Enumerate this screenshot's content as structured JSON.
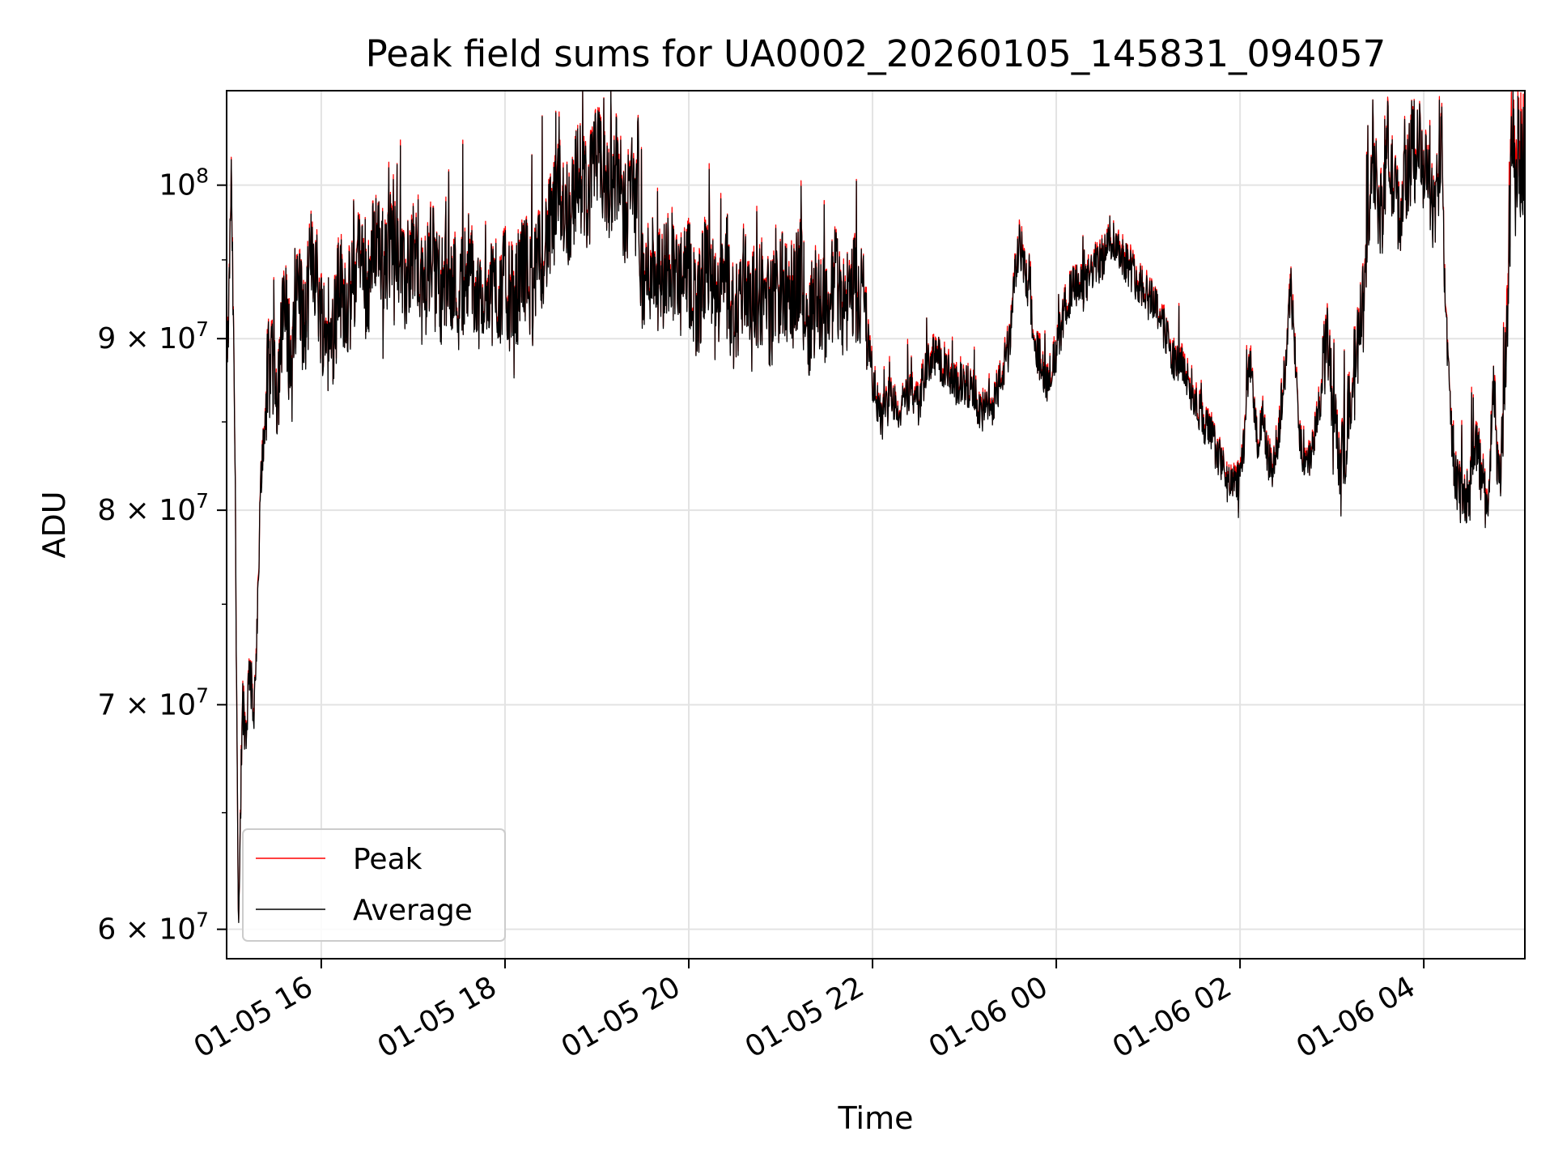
{
  "chart_data": {
    "type": "line",
    "title": "Peak field sums for UA0002_20260105_145831_094057",
    "xlabel": "Time",
    "ylabel": "ADU",
    "yscale": "log",
    "grid": true,
    "legend_position": "lower-left",
    "x_units": "hours since 01-05 00:00",
    "xlim": [
      14.97,
      29.1
    ],
    "ylim": [
      58800000,
      106700000
    ],
    "x_ticks": [
      {
        "x": 16,
        "label": "01-05 16"
      },
      {
        "x": 18,
        "label": "01-05 18"
      },
      {
        "x": 20,
        "label": "01-05 20"
      },
      {
        "x": 22,
        "label": "01-05 22"
      },
      {
        "x": 24,
        "label": "01-06 00"
      },
      {
        "x": 26,
        "label": "01-06 02"
      },
      {
        "x": 28,
        "label": "01-06 04"
      }
    ],
    "y_ticks": [
      {
        "y": 60000000,
        "label": "6 × 10⁷",
        "mant": "6 × 10",
        "exp": "7"
      },
      {
        "y": 70000000,
        "label": "7 × 10⁷",
        "mant": "7 × 10",
        "exp": "7"
      },
      {
        "y": 80000000,
        "label": "8 × 10⁷",
        "mant": "8 × 10",
        "exp": "7"
      },
      {
        "y": 90000000,
        "label": "9 × 10⁷",
        "mant": "9 × 10",
        "exp": "7"
      },
      {
        "y": 100000000,
        "label": "10⁸",
        "mant": "10",
        "exp": "8"
      }
    ],
    "legend": [
      {
        "name": "Peak",
        "color": "#ff0000"
      },
      {
        "name": "Average",
        "color": "#000000"
      }
    ],
    "series": [
      {
        "name": "Average",
        "color": "#000000",
        "points": [
          [
            14.98,
            88000000
          ],
          [
            15.02,
            100500000
          ],
          [
            15.06,
            84000000
          ],
          [
            15.1,
            58800000
          ],
          [
            15.14,
            70500000
          ],
          [
            15.18,
            68500000
          ],
          [
            15.22,
            72000000
          ],
          [
            15.26,
            69500000
          ],
          [
            15.3,
            73000000
          ],
          [
            15.34,
            81000000
          ],
          [
            15.38,
            85000000
          ],
          [
            15.45,
            89500000
          ],
          [
            15.52,
            87000000
          ],
          [
            15.6,
            92000000
          ],
          [
            15.68,
            88000000
          ],
          [
            15.75,
            94000000
          ],
          [
            15.82,
            90000000
          ],
          [
            15.9,
            96000000
          ],
          [
            16.0,
            91500000
          ],
          [
            16.1,
            89500000
          ],
          [
            16.2,
            93500000
          ],
          [
            16.3,
            92000000
          ],
          [
            16.4,
            95000000
          ],
          [
            16.5,
            93000000
          ],
          [
            16.6,
            97000000
          ],
          [
            16.7,
            94000000
          ],
          [
            16.8,
            98000000
          ],
          [
            16.9,
            93000000
          ],
          [
            17.0,
            96000000
          ],
          [
            17.1,
            92500000
          ],
          [
            17.2,
            95500000
          ],
          [
            17.3,
            93000000
          ],
          [
            17.4,
            94500000
          ],
          [
            17.5,
            92500000
          ],
          [
            17.6,
            95000000
          ],
          [
            17.7,
            92000000
          ],
          [
            17.8,
            94000000
          ],
          [
            17.9,
            92500000
          ],
          [
            18.0,
            93500000
          ],
          [
            18.1,
            92000000
          ],
          [
            18.2,
            95000000
          ],
          [
            18.3,
            93000000
          ],
          [
            18.4,
            95500000
          ],
          [
            18.5,
            97000000
          ],
          [
            18.6,
            99500000
          ],
          [
            18.7,
            98000000
          ],
          [
            18.8,
            101000000
          ],
          [
            18.9,
            99000000
          ],
          [
            19.0,
            102000000
          ],
          [
            19.1,
            99500000
          ],
          [
            19.2,
            101500000
          ],
          [
            19.3,
            98000000
          ],
          [
            19.4,
            100500000
          ],
          [
            19.5,
            93000000
          ],
          [
            19.6,
            95000000
          ],
          [
            19.7,
            93500000
          ],
          [
            19.8,
            95500000
          ],
          [
            19.9,
            93000000
          ],
          [
            20.0,
            94000000
          ],
          [
            20.1,
            92000000
          ],
          [
            20.2,
            95000000
          ],
          [
            20.3,
            91500000
          ],
          [
            20.4,
            93500000
          ],
          [
            20.5,
            91000000
          ],
          [
            20.6,
            94000000
          ],
          [
            20.7,
            92500000
          ],
          [
            20.8,
            93000000
          ],
          [
            20.9,
            91500000
          ],
          [
            21.0,
            93500000
          ],
          [
            21.1,
            92000000
          ],
          [
            21.2,
            94500000
          ],
          [
            21.3,
            91000000
          ],
          [
            21.4,
            93000000
          ],
          [
            21.5,
            91500000
          ],
          [
            21.6,
            94000000
          ],
          [
            21.7,
            92000000
          ],
          [
            21.8,
            93500000
          ],
          [
            21.9,
            92500000
          ],
          [
            22.0,
            87500000
          ],
          [
            22.1,
            85000000
          ],
          [
            22.2,
            86500000
          ],
          [
            22.3,
            85500000
          ],
          [
            22.4,
            87000000
          ],
          [
            22.5,
            86000000
          ],
          [
            22.6,
            88500000
          ],
          [
            22.7,
            89000000
          ],
          [
            22.8,
            88000000
          ],
          [
            22.9,
            87000000
          ],
          [
            23.0,
            87500000
          ],
          [
            23.1,
            86500000
          ],
          [
            23.2,
            85500000
          ],
          [
            23.3,
            86000000
          ],
          [
            23.4,
            87500000
          ],
          [
            23.5,
            90000000
          ],
          [
            23.55,
            94000000
          ],
          [
            23.6,
            96000000
          ],
          [
            23.7,
            93000000
          ],
          [
            23.8,
            89000000
          ],
          [
            23.9,
            87500000
          ],
          [
            24.0,
            89000000
          ],
          [
            24.1,
            92000000
          ],
          [
            24.2,
            93500000
          ],
          [
            24.3,
            93000000
          ],
          [
            24.4,
            94500000
          ],
          [
            24.5,
            95000000
          ],
          [
            24.6,
            96500000
          ],
          [
            24.7,
            95500000
          ],
          [
            24.8,
            94500000
          ],
          [
            24.9,
            93500000
          ],
          [
            25.0,
            93000000
          ],
          [
            25.1,
            92000000
          ],
          [
            25.2,
            90000000
          ],
          [
            25.3,
            88500000
          ],
          [
            25.4,
            88000000
          ],
          [
            25.5,
            86500000
          ],
          [
            25.6,
            85000000
          ],
          [
            25.7,
            84000000
          ],
          [
            25.8,
            82500000
          ],
          [
            25.9,
            81000000
          ],
          [
            26.0,
            82000000
          ],
          [
            26.05,
            84000000
          ],
          [
            26.1,
            89000000
          ],
          [
            26.15,
            86000000
          ],
          [
            26.2,
            83500000
          ],
          [
            26.25,
            85500000
          ],
          [
            26.3,
            83000000
          ],
          [
            26.35,
            82000000
          ],
          [
            26.4,
            83500000
          ],
          [
            26.5,
            88500000
          ],
          [
            26.55,
            93500000
          ],
          [
            26.6,
            89000000
          ],
          [
            26.65,
            84000000
          ],
          [
            26.7,
            82000000
          ],
          [
            26.8,
            83500000
          ],
          [
            26.9,
            87500000
          ],
          [
            26.95,
            90500000
          ],
          [
            27.0,
            86000000
          ],
          [
            27.05,
            84000000
          ],
          [
            27.1,
            82000000
          ],
          [
            27.2,
            86500000
          ],
          [
            27.3,
            90000000
          ],
          [
            27.35,
            94000000
          ],
          [
            27.4,
            98000000
          ],
          [
            27.45,
            102000000
          ],
          [
            27.5,
            99000000
          ],
          [
            27.55,
            97500000
          ],
          [
            27.6,
            103500000
          ],
          [
            27.65,
            100500000
          ],
          [
            27.7,
            99000000
          ],
          [
            27.75,
            98000000
          ],
          [
            27.8,
            100500000
          ],
          [
            27.85,
            101500000
          ],
          [
            27.9,
            102000000
          ],
          [
            27.95,
            103000000
          ],
          [
            28.0,
            101000000
          ],
          [
            28.05,
            100500000
          ],
          [
            28.1,
            98000000
          ],
          [
            28.15,
            100000000
          ],
          [
            28.2,
            102500000
          ],
          [
            28.22,
            95000000
          ],
          [
            28.26,
            89000000
          ],
          [
            28.3,
            84000000
          ],
          [
            28.35,
            82000000
          ],
          [
            28.4,
            81000000
          ],
          [
            28.45,
            80500000
          ],
          [
            28.5,
            81000000
          ],
          [
            28.55,
            84000000
          ],
          [
            28.6,
            83000000
          ],
          [
            28.65,
            81000000
          ],
          [
            28.7,
            80000000
          ],
          [
            28.72,
            83000000
          ],
          [
            28.76,
            87000000
          ],
          [
            28.82,
            81000000
          ],
          [
            28.86,
            85000000
          ],
          [
            28.9,
            88000000
          ],
          [
            28.94,
            99000000
          ],
          [
            28.97,
            104000000
          ],
          [
            29.0,
            100000000
          ],
          [
            29.03,
            103000000
          ],
          [
            29.06,
            101000000
          ],
          [
            29.09,
            102500000
          ]
        ]
      }
    ]
  }
}
